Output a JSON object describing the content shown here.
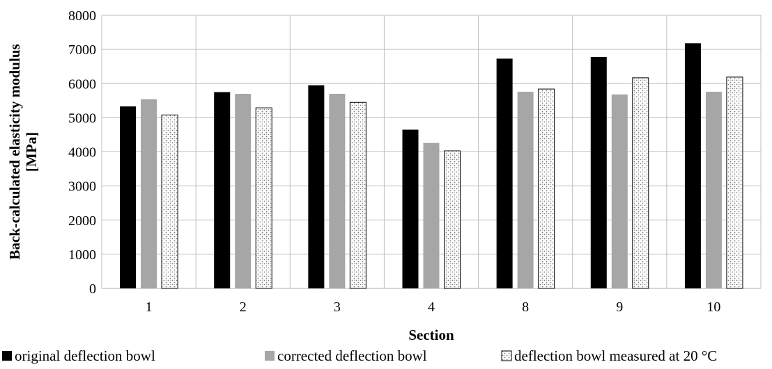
{
  "chart_data": {
    "type": "bar",
    "title": "",
    "xlabel": "Section",
    "ylabel": "Back-calculated elasticity modulus [MPa]",
    "ylabel_lines": [
      "Back-calculated elasticity modulus",
      "[MPa]"
    ],
    "categories": [
      "1",
      "2",
      "3",
      "4",
      "8",
      "9",
      "10"
    ],
    "ylim": [
      0,
      8000
    ],
    "yticks": [
      0,
      1000,
      2000,
      3000,
      4000,
      5000,
      6000,
      7000,
      8000
    ],
    "grid": true,
    "legend_position": "bottom",
    "series": [
      {
        "name": "original deflection bowl",
        "color": "#000000",
        "pattern": "solid",
        "values": [
          5330,
          5750,
          5950,
          4650,
          6730,
          6780,
          7180
        ]
      },
      {
        "name": "corrected deflection bowl",
        "color": "#a6a6a6",
        "pattern": "solid",
        "values": [
          5540,
          5700,
          5700,
          4260,
          5760,
          5680,
          5760
        ]
      },
      {
        "name": "deflection bowl measured at 20 °C",
        "color": "#ffffff",
        "pattern": "dotted",
        "values": [
          5080,
          5290,
          5450,
          4030,
          5840,
          6170,
          6190
        ]
      }
    ]
  }
}
